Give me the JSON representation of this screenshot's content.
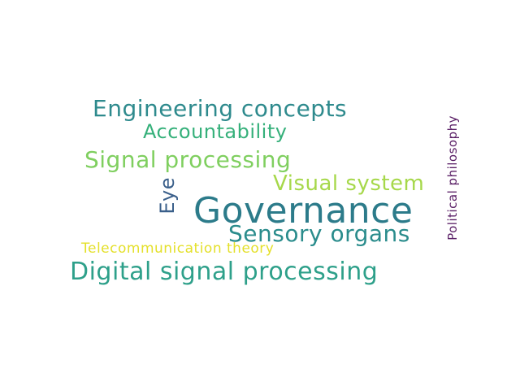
{
  "words": {
    "governance": {
      "text": "Governance",
      "color": "#2c7b8a"
    },
    "digital_signal_processing": {
      "text": "Digital signal processing",
      "color": "#2ea08a"
    },
    "engineering_concepts": {
      "text": "Engineering concepts",
      "color": "#2e8a8d"
    },
    "signal_processing": {
      "text": "Signal processing",
      "color": "#7fcf5f"
    },
    "sensory_organs": {
      "text": "Sensory organs",
      "color": "#2a8c8c"
    },
    "visual_system": {
      "text": "Visual system",
      "color": "#a6d84a"
    },
    "accountability": {
      "text": "Accountability",
      "color": "#35b07a"
    },
    "telecommunication_theory": {
      "text": "Telecommunication theory",
      "color": "#e4e02a"
    },
    "eye": {
      "text": "Eye",
      "color": "#3a5f8a"
    },
    "political_philosophy": {
      "text": "Political philosophy",
      "color": "#5a1f66"
    }
  }
}
